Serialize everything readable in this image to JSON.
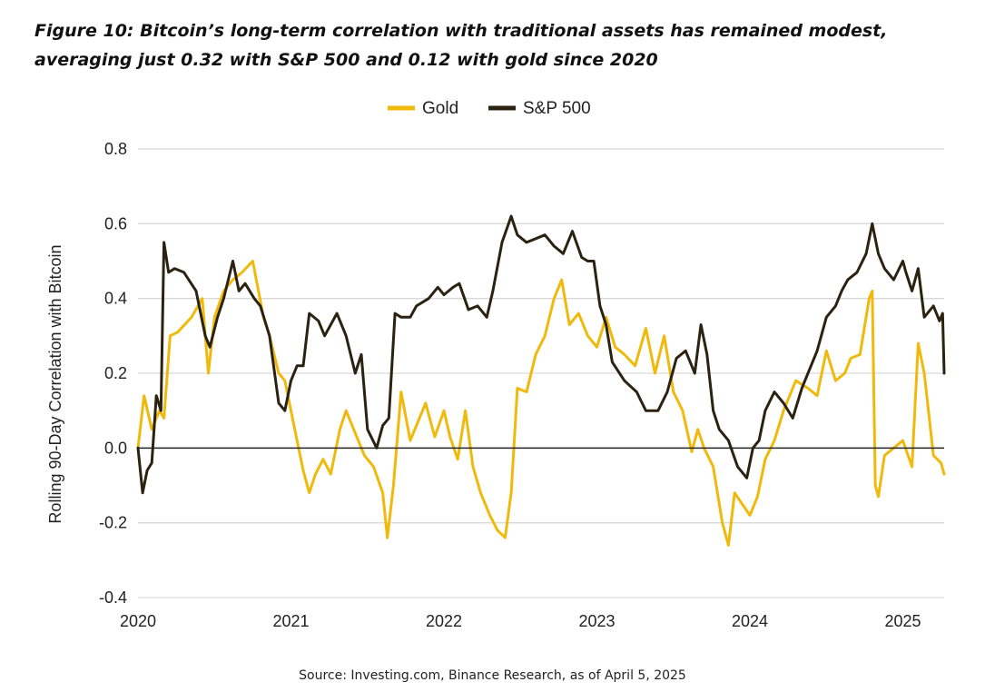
{
  "title": "Figure 10: Bitcoin’s long-term correlation with traditional assets has remained modest, averaging just 0.32 with S&P 500 and 0.12 with gold since 2020",
  "source": "Source: Investing.com, Binance Research, as of April 5, 2025",
  "colors": {
    "gold": "#F0B90B",
    "sp500": "#2B2211",
    "grid": "#D9D9D9",
    "zero": "#222222"
  },
  "chart_data": {
    "type": "line",
    "title": "Figure 10: Bitcoin’s long-term correlation with traditional assets has remained modest, averaging just 0.32 with S&P 500 and 0.12 with gold since 2020",
    "xlabel": "",
    "ylabel": "Rolling 90-Day Correlation with Bitcoin",
    "xlim": [
      2020.0,
      2025.27
    ],
    "ylim": [
      -0.4,
      0.8
    ],
    "yticks": [
      -0.4,
      -0.2,
      0.0,
      0.2,
      0.4,
      0.6,
      0.8
    ],
    "ytick_labels": [
      "-0.4",
      "-0.2",
      "0.0",
      "0.2",
      "0.4",
      "0.6",
      "0.8"
    ],
    "xticks": [
      2020,
      2021,
      2022,
      2023,
      2024,
      2025
    ],
    "xtick_labels": [
      "2020",
      "2021",
      "2022",
      "2023",
      "2024",
      "2025"
    ],
    "grid": true,
    "legend": "top-center",
    "series": [
      {
        "name": "Gold",
        "color": "#F0B90B",
        "x": [
          2020.0,
          2020.04,
          2020.09,
          2020.14,
          2020.17,
          2020.21,
          2020.26,
          2020.35,
          2020.42,
          2020.46,
          2020.5,
          2020.56,
          2020.62,
          2020.68,
          2020.75,
          2020.82,
          2020.86,
          2020.92,
          2020.96,
          2021.0,
          2021.04,
          2021.08,
          2021.12,
          2021.16,
          2021.21,
          2021.26,
          2021.32,
          2021.36,
          2021.42,
          2021.48,
          2021.54,
          2021.6,
          2021.63,
          2021.67,
          2021.72,
          2021.78,
          2021.83,
          2021.88,
          2021.94,
          2022.0,
          2022.04,
          2022.09,
          2022.14,
          2022.19,
          2022.24,
          2022.3,
          2022.35,
          2022.4,
          2022.44,
          2022.48,
          2022.54,
          2022.6,
          2022.66,
          2022.72,
          2022.77,
          2022.82,
          2022.88,
          2022.94,
          2023.0,
          2023.06,
          2023.12,
          2023.18,
          2023.25,
          2023.32,
          2023.38,
          2023.44,
          2023.5,
          2023.56,
          2023.62,
          2023.66,
          2023.7,
          2023.76,
          2023.82,
          2023.86,
          2023.9,
          2023.95,
          2024.0,
          2024.05,
          2024.1,
          2024.16,
          2024.22,
          2024.3,
          2024.38,
          2024.44,
          2024.5,
          2024.56,
          2024.62,
          2024.66,
          2024.72,
          2024.78,
          2024.8,
          2024.82,
          2024.84,
          2024.88,
          2024.94,
          2025.0,
          2025.06,
          2025.1,
          2025.14,
          2025.2,
          2025.25,
          2025.27
        ],
        "y": [
          0.0,
          0.14,
          0.05,
          0.1,
          0.08,
          0.3,
          0.31,
          0.35,
          0.4,
          0.2,
          0.35,
          0.42,
          0.45,
          0.47,
          0.5,
          0.35,
          0.3,
          0.2,
          0.18,
          0.1,
          0.02,
          -0.06,
          -0.12,
          -0.07,
          -0.03,
          -0.07,
          0.05,
          0.1,
          0.04,
          -0.02,
          -0.05,
          -0.12,
          -0.24,
          -0.1,
          0.15,
          0.02,
          0.07,
          0.12,
          0.03,
          0.1,
          0.03,
          -0.03,
          0.1,
          -0.05,
          -0.12,
          -0.18,
          -0.22,
          -0.24,
          -0.12,
          0.16,
          0.15,
          0.25,
          0.3,
          0.4,
          0.45,
          0.33,
          0.36,
          0.3,
          0.27,
          0.35,
          0.27,
          0.25,
          0.22,
          0.32,
          0.2,
          0.3,
          0.15,
          0.1,
          -0.01,
          0.05,
          0.0,
          -0.05,
          -0.2,
          -0.26,
          -0.12,
          -0.15,
          -0.18,
          -0.13,
          -0.03,
          0.02,
          0.1,
          0.18,
          0.16,
          0.14,
          0.26,
          0.18,
          0.2,
          0.24,
          0.25,
          0.4,
          0.42,
          -0.1,
          -0.13,
          -0.02,
          0.0,
          0.02,
          -0.05,
          0.28,
          0.2,
          -0.02,
          -0.04,
          -0.07
        ]
      },
      {
        "name": "S&P 500",
        "color": "#2B2211",
        "x": [
          2020.0,
          2020.03,
          2020.06,
          2020.09,
          2020.12,
          2020.15,
          2020.17,
          2020.2,
          2020.24,
          2020.3,
          2020.38,
          2020.44,
          2020.47,
          2020.52,
          2020.56,
          2020.62,
          2020.66,
          2020.7,
          2020.76,
          2020.8,
          2020.86,
          2020.92,
          2020.96,
          2021.0,
          2021.04,
          2021.08,
          2021.12,
          2021.18,
          2021.22,
          2021.3,
          2021.36,
          2021.42,
          2021.46,
          2021.5,
          2021.56,
          2021.6,
          2021.64,
          2021.68,
          2021.72,
          2021.78,
          2021.82,
          2021.9,
          2021.96,
          2022.0,
          2022.06,
          2022.1,
          2022.16,
          2022.22,
          2022.28,
          2022.32,
          2022.38,
          2022.44,
          2022.48,
          2022.54,
          2022.6,
          2022.66,
          2022.72,
          2022.78,
          2022.84,
          2022.9,
          2022.94,
          2022.98,
          2023.02,
          2023.06,
          2023.1,
          2023.18,
          2023.26,
          2023.32,
          2023.4,
          2023.46,
          2023.52,
          2023.58,
          2023.64,
          2023.68,
          2023.72,
          2023.76,
          2023.8,
          2023.86,
          2023.92,
          2023.98,
          2024.02,
          2024.06,
          2024.1,
          2024.16,
          2024.22,
          2024.28,
          2024.34,
          2024.38,
          2024.44,
          2024.5,
          2024.56,
          2024.6,
          2024.64,
          2024.7,
          2024.76,
          2024.8,
          2024.84,
          2024.88,
          2024.94,
          2025.0,
          2025.02,
          2025.06,
          2025.1,
          2025.14,
          2025.2,
          2025.24,
          2025.26,
          2025.27
        ],
        "y": [
          0.0,
          -0.12,
          -0.06,
          -0.04,
          0.14,
          0.1,
          0.55,
          0.47,
          0.48,
          0.47,
          0.42,
          0.3,
          0.27,
          0.35,
          0.4,
          0.5,
          0.42,
          0.44,
          0.4,
          0.38,
          0.3,
          0.12,
          0.1,
          0.18,
          0.22,
          0.22,
          0.36,
          0.34,
          0.3,
          0.36,
          0.3,
          0.2,
          0.25,
          0.05,
          0.0,
          0.06,
          0.08,
          0.36,
          0.35,
          0.35,
          0.38,
          0.4,
          0.43,
          0.41,
          0.43,
          0.44,
          0.37,
          0.38,
          0.35,
          0.42,
          0.55,
          0.62,
          0.57,
          0.55,
          0.56,
          0.57,
          0.54,
          0.52,
          0.58,
          0.51,
          0.5,
          0.5,
          0.38,
          0.33,
          0.23,
          0.18,
          0.15,
          0.1,
          0.1,
          0.15,
          0.24,
          0.26,
          0.2,
          0.33,
          0.25,
          0.1,
          0.05,
          0.02,
          -0.05,
          -0.08,
          0.0,
          0.02,
          0.1,
          0.15,
          0.12,
          0.08,
          0.16,
          0.2,
          0.26,
          0.35,
          0.38,
          0.42,
          0.45,
          0.47,
          0.52,
          0.6,
          0.52,
          0.48,
          0.45,
          0.5,
          0.47,
          0.42,
          0.48,
          0.35,
          0.38,
          0.34,
          0.36,
          0.2
        ]
      }
    ]
  }
}
